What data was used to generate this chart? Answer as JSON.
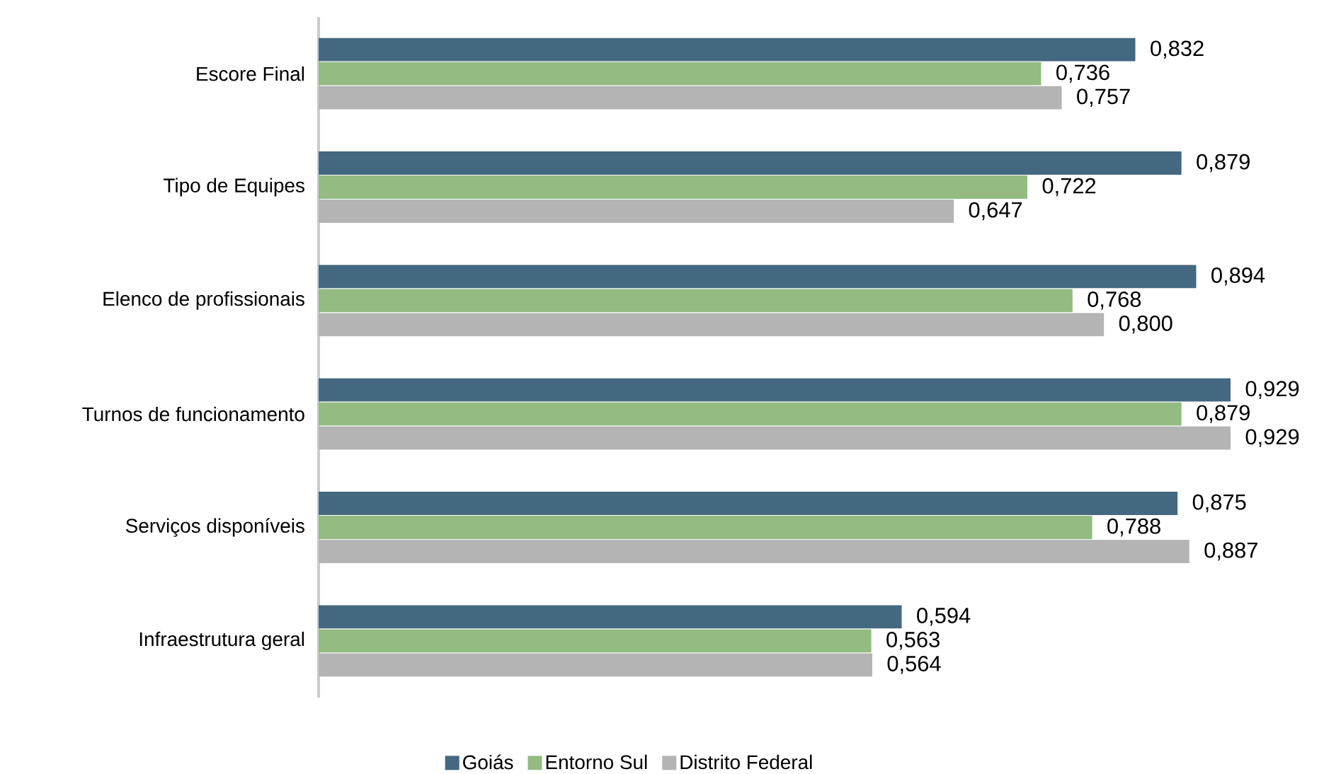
{
  "chart_data": {
    "type": "bar",
    "orientation": "horizontal",
    "categories": [
      "Escore Final",
      "Tipo de Equipes",
      "Elenco de profissionais",
      "Turnos de funcionamento",
      "Serviços disponíveis",
      "Infraestrutura geral"
    ],
    "series": [
      {
        "name": "Goiás",
        "color": "#44687f",
        "values": [
          0.832,
          0.879,
          0.894,
          0.929,
          0.875,
          0.594
        ],
        "value_labels": [
          "0,832",
          "0,879",
          "0,894",
          "0,929",
          "0,875",
          "0,594"
        ]
      },
      {
        "name": "Entorno Sul",
        "color": "#93bb82",
        "values": [
          0.736,
          0.722,
          0.768,
          0.879,
          0.788,
          0.563
        ],
        "value_labels": [
          "0,736",
          "0,722",
          "0,768",
          "0,879",
          "0,788",
          "0,563"
        ]
      },
      {
        "name": "Distrito Federal",
        "color": "#b4b4b4",
        "values": [
          0.757,
          0.647,
          0.8,
          0.929,
          0.887,
          0.564
        ],
        "value_labels": [
          "0,757",
          "0,647",
          "0,800",
          "0,929",
          "0,887",
          "0,564"
        ]
      }
    ],
    "xlim": [
      0,
      0.929
    ],
    "legend": "bottom"
  }
}
